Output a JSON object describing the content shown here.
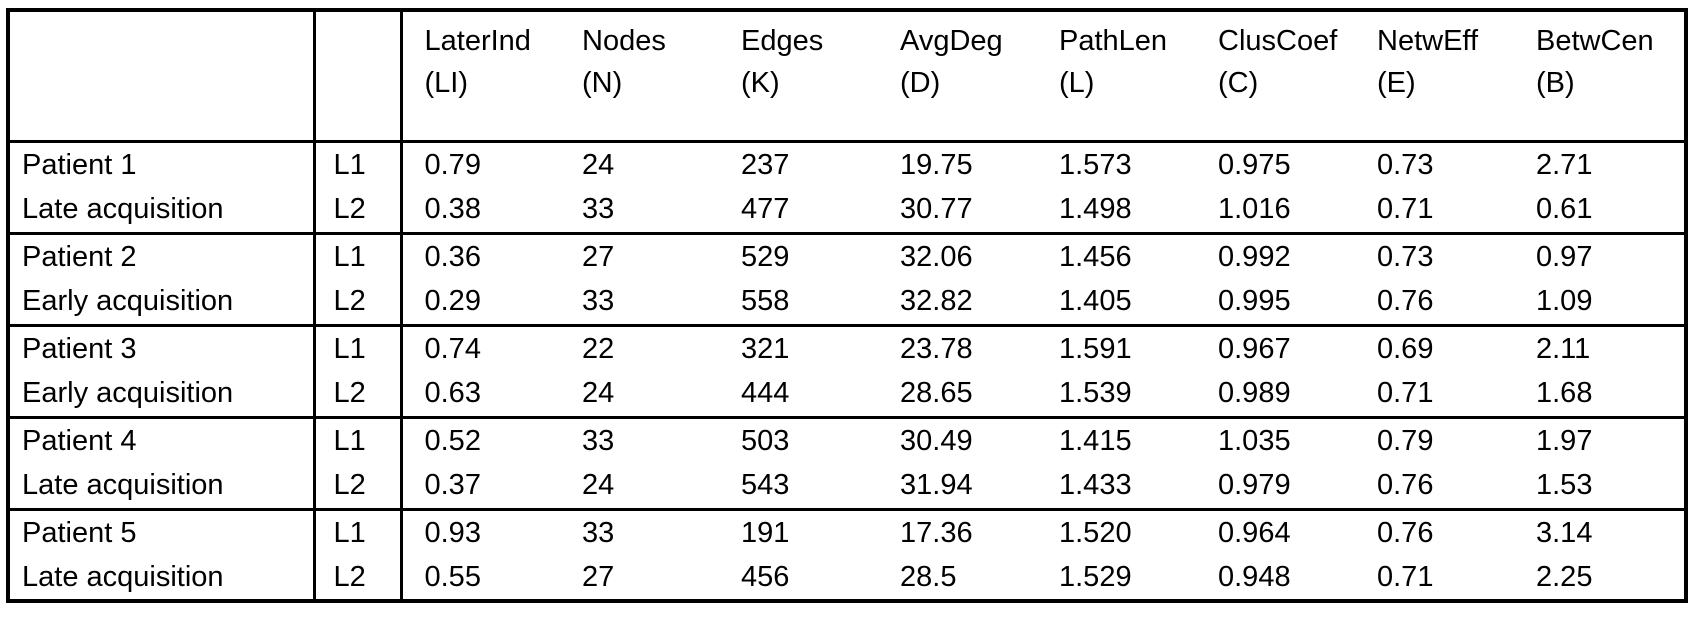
{
  "colors": {
    "background": "#ffffff",
    "border": "#000000",
    "text": "#000000"
  },
  "table": {
    "header": {
      "name_column": "",
      "language_column": "",
      "columns": [
        {
          "line1": "LaterInd",
          "line2": "(LI)"
        },
        {
          "line1": "Nodes",
          "line2": "(N)"
        },
        {
          "line1": "Edges",
          "line2": "(K)"
        },
        {
          "line1": "AvgDeg",
          "line2": "(D)"
        },
        {
          "line1": "PathLen",
          "line2": "(L)"
        },
        {
          "line1": "ClusCoef",
          "line2": "(C)"
        },
        {
          "line1": "NetwEff",
          "line2": "(E)"
        },
        {
          "line1": "BetwCen",
          "line2": "(B)"
        }
      ]
    },
    "groups": [
      {
        "patient": "Patient 1",
        "acquisition": "Late acquisition",
        "rows": [
          {
            "lang": "L1",
            "values": [
              "0.79",
              "24",
              "237",
              "19.75",
              "1.573",
              "0.975",
              "0.73",
              "2.71"
            ]
          },
          {
            "lang": "L2",
            "values": [
              "0.38",
              "33",
              "477",
              "30.77",
              "1.498",
              "1.016",
              "0.71",
              "0.61"
            ]
          }
        ]
      },
      {
        "patient": "Patient 2",
        "acquisition": "Early acquisition",
        "rows": [
          {
            "lang": "L1",
            "values": [
              "0.36",
              "27",
              "529",
              "32.06",
              "1.456",
              "0.992",
              "0.73",
              "0.97"
            ]
          },
          {
            "lang": "L2",
            "values": [
              "0.29",
              "33",
              "558",
              "32.82",
              "1.405",
              "0.995",
              "0.76",
              "1.09"
            ]
          }
        ]
      },
      {
        "patient": "Patient 3",
        "acquisition": "Early acquisition",
        "rows": [
          {
            "lang": "L1",
            "values": [
              "0.74",
              "22",
              "321",
              "23.78",
              "1.591",
              "0.967",
              "0.69",
              "2.11"
            ]
          },
          {
            "lang": "L2",
            "values": [
              "0.63",
              "24",
              "444",
              "28.65",
              "1.539",
              "0.989",
              "0.71",
              "1.68"
            ]
          }
        ]
      },
      {
        "patient": "Patient 4",
        "acquisition": "Late acquisition",
        "rows": [
          {
            "lang": "L1",
            "values": [
              "0.52",
              "33",
              "503",
              "30.49",
              "1.415",
              "1.035",
              "0.79",
              "1.97"
            ]
          },
          {
            "lang": "L2",
            "values": [
              "0.37",
              "24",
              "543",
              "31.94",
              "1.433",
              "0.979",
              "0.76",
              "1.53"
            ]
          }
        ]
      },
      {
        "patient": "Patient 5",
        "acquisition": "Late acquisition",
        "rows": [
          {
            "lang": "L1",
            "values": [
              "0.93",
              "33",
              "191",
              "17.36",
              "1.520",
              "0.964",
              "0.76",
              "3.14"
            ]
          },
          {
            "lang": "L2",
            "values": [
              "0.55",
              "27",
              "456",
              "28.5",
              "1.529",
              "0.948",
              "0.71",
              "2.25"
            ]
          }
        ]
      }
    ]
  }
}
